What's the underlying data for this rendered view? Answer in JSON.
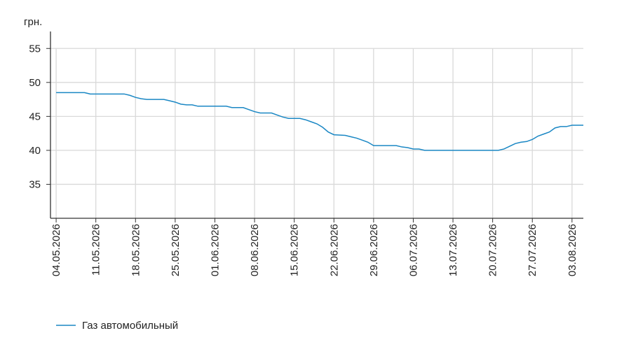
{
  "chart_data": {
    "type": "line",
    "y_unit": "грн.",
    "x": [
      "04.05.2026",
      "09.05.2026",
      "10.05.2026",
      "16.05.2026",
      "17.05.2026",
      "18.05.2026",
      "19.05.2026",
      "20.05.2026",
      "23.05.2026",
      "24.05.2026",
      "25.05.2026",
      "26.05.2026",
      "27.05.2026",
      "28.05.2026",
      "29.05.2026",
      "03.06.2026",
      "04.06.2026",
      "06.06.2026",
      "07.06.2026",
      "08.06.2026",
      "09.06.2026",
      "11.06.2026",
      "12.06.2026",
      "13.06.2026",
      "14.06.2026",
      "16.06.2026",
      "17.06.2026",
      "18.06.2026",
      "19.06.2026",
      "20.06.2026",
      "21.06.2026",
      "22.06.2026",
      "24.06.2026",
      "25.06.2026",
      "26.06.2026",
      "27.06.2026",
      "28.06.2026",
      "29.06.2026",
      "03.07.2026",
      "04.07.2026",
      "05.07.2026",
      "06.07.2026",
      "07.07.2026",
      "08.07.2026",
      "21.07.2026",
      "22.07.2026",
      "23.07.2026",
      "24.07.2026",
      "25.07.2026",
      "26.07.2026",
      "27.07.2026",
      "28.07.2026",
      "29.07.2026",
      "30.07.2026",
      "31.07.2026",
      "01.08.2026",
      "02.08.2026",
      "03.08.2026",
      "05.08.2026"
    ],
    "series": [
      {
        "name": "Газ автомобильный",
        "color": "#1a87c4",
        "values": [
          48.5,
          48.5,
          48.3,
          48.3,
          48.1,
          47.8,
          47.6,
          47.5,
          47.5,
          47.3,
          47.1,
          46.8,
          46.7,
          46.7,
          46.5,
          46.5,
          46.3,
          46.3,
          46.0,
          45.7,
          45.5,
          45.5,
          45.2,
          44.9,
          44.7,
          44.7,
          44.5,
          44.2,
          43.9,
          43.4,
          42.7,
          42.3,
          42.2,
          42.0,
          41.8,
          41.5,
          41.2,
          40.7,
          40.7,
          40.5,
          40.4,
          40.2,
          40.2,
          40.0,
          40.0,
          40.2,
          40.6,
          41.0,
          41.2,
          41.3,
          41.6,
          42.1,
          42.4,
          42.7,
          43.3,
          43.5,
          43.5,
          43.7,
          43.7
        ]
      }
    ],
    "xlim": [
      "03.05.2026",
      "05.08.2026"
    ],
    "xticks": [
      "04.05.2026",
      "11.05.2026",
      "18.05.2026",
      "25.05.2026",
      "01.06.2026",
      "08.06.2026",
      "15.06.2026",
      "22.06.2026",
      "29.06.2026",
      "06.07.2026",
      "13.07.2026",
      "20.07.2026",
      "27.07.2026",
      "03.08.2026"
    ],
    "ylim": [
      30,
      57.5
    ],
    "yticks": [
      35,
      40,
      45,
      50,
      55
    ],
    "grid": true
  }
}
